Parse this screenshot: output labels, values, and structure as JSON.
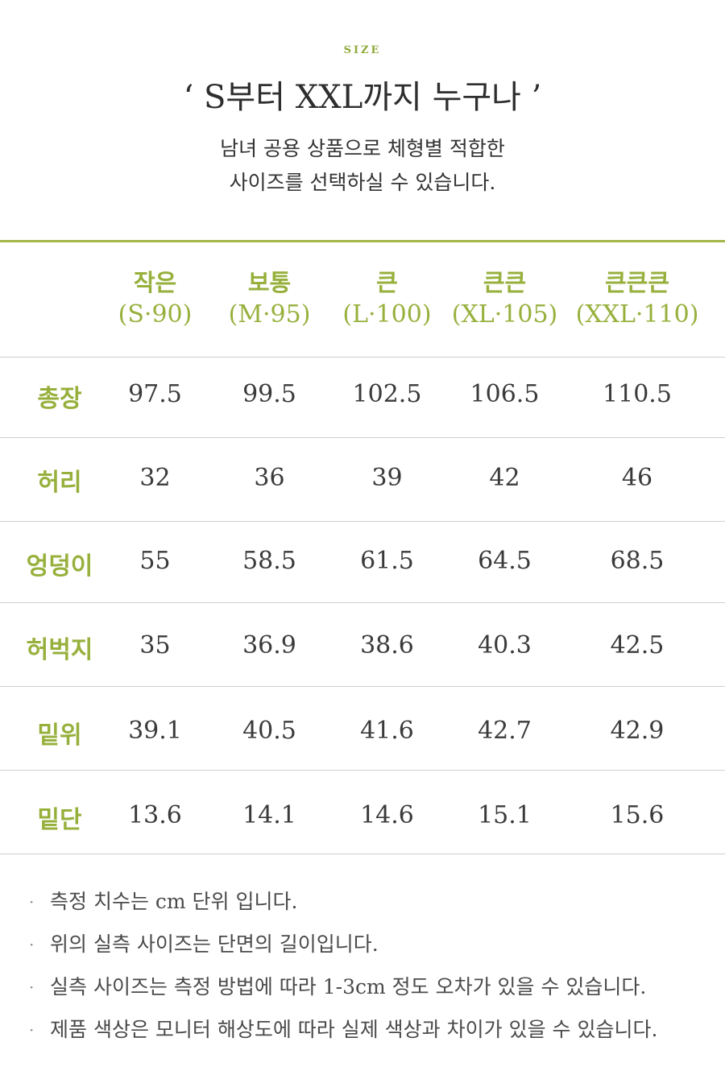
{
  "eyebrow": "SIZE",
  "headline": "‘ S부터 XXL까지 누구나 ’",
  "intro": {
    "line1": "남녀 공용 상품으로 체형별 적합한",
    "line2": "사이즈를 선택하실 수 있습니다."
  },
  "colors": {
    "accent": "#97b03c",
    "rule": "#a3b64a",
    "divider": "#cfcfcf"
  },
  "columns": [
    {
      "name": "작은",
      "size": "(S·90)"
    },
    {
      "name": "보통",
      "size": "(M·95)"
    },
    {
      "name": "큰",
      "size": "(L·100)"
    },
    {
      "name": "큰큰",
      "size": "(XL·105)"
    },
    {
      "name": "큰큰큰",
      "size": "(XXL·110)"
    }
  ],
  "rows": [
    {
      "label": "총장",
      "values": [
        "97.5",
        "99.5",
        "102.5",
        "106.5",
        "110.5"
      ]
    },
    {
      "label": "허리",
      "values": [
        "32",
        "36",
        "39",
        "42",
        "46"
      ]
    },
    {
      "label": "엉덩이",
      "values": [
        "55",
        "58.5",
        "61.5",
        "64.5",
        "68.5"
      ]
    },
    {
      "label": "허벅지",
      "values": [
        "35",
        "36.9",
        "38.6",
        "40.3",
        "42.5"
      ]
    },
    {
      "label": "밑위",
      "values": [
        "39.1",
        "40.5",
        "41.6",
        "42.7",
        "42.9"
      ]
    },
    {
      "label": "밑단",
      "values": [
        "13.6",
        "14.1",
        "14.6",
        "15.1",
        "15.6"
      ]
    }
  ],
  "notes": {
    "bullet": "·",
    "items": [
      "측정 치수는 cm 단위 입니다.",
      "위의 실측 사이즈는 단면의 길이입니다.",
      "실측 사이즈는 측정 방법에 따라 1-3cm 정도 오차가 있을 수 있습니다.",
      "제품 색상은 모니터 해상도에 따라 실제 색상과 차이가 있을 수 있습니다."
    ]
  }
}
